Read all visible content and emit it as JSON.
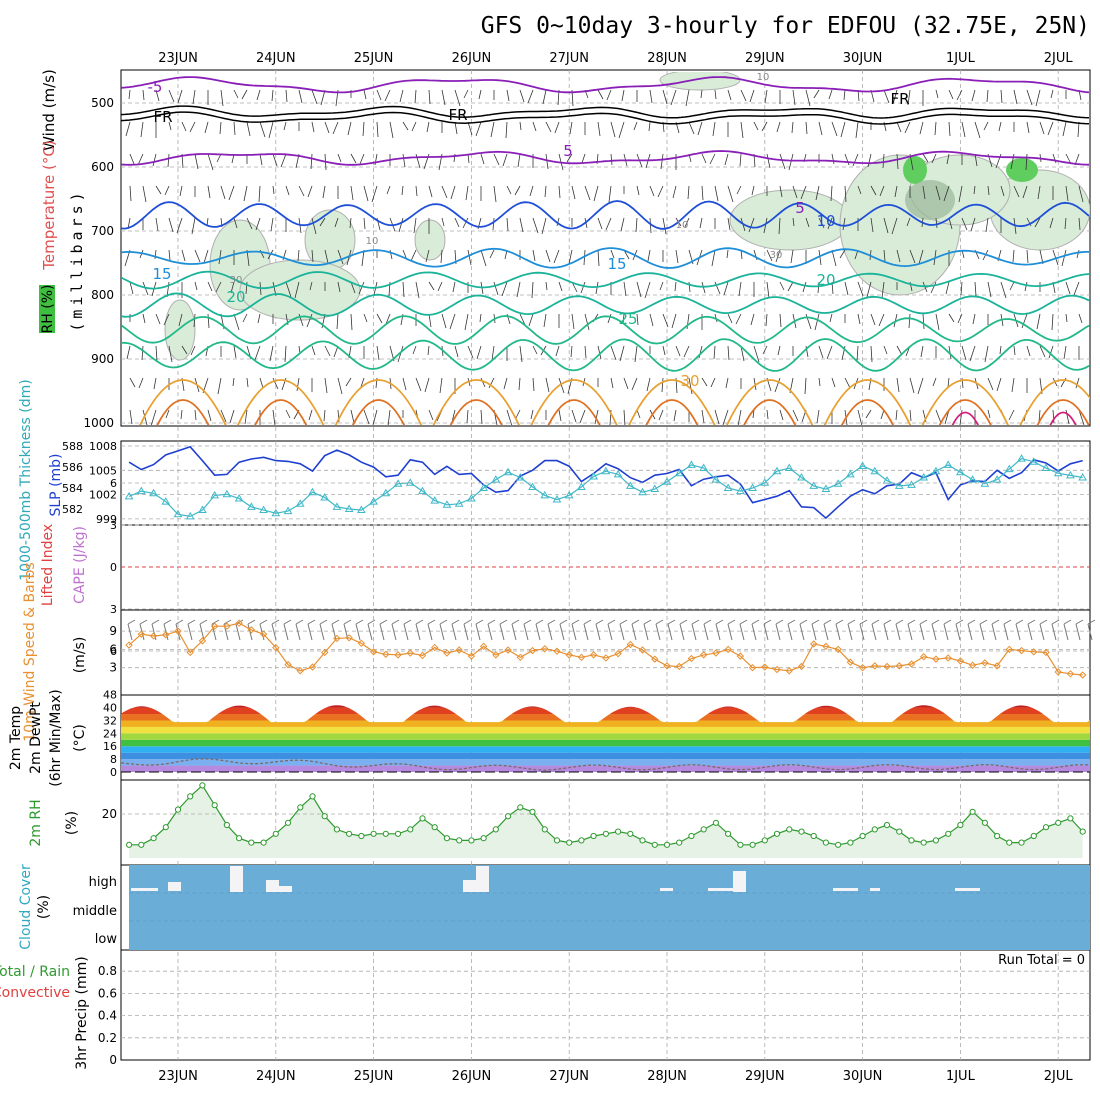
{
  "title": "GFS 0~10day 3-hourly for EDFOU (32.75E, 25N)",
  "dates": [
    "23JUN",
    "24JUN",
    "25JUN",
    "26JUN",
    "27JUN",
    "28JUN",
    "29JUN",
    "30JUN",
    "1JUL",
    "2JUL"
  ],
  "colors": {
    "temp_cold": "#8a1fb8",
    "temp_freezing": "#000000",
    "temp_10": "#1f4fd6",
    "temp_15": "#1e8ed8",
    "temp_20": "#1bb39a",
    "temp_25": "#22b88a",
    "temp_30": "#e8a030",
    "temp_35": "#e07020",
    "temp_40": "#d0207a",
    "rh_fill": "#d8ecd8",
    "slp": "#1f3fd0",
    "thickness": "#3fb8c8",
    "lifted_index": "#e04040",
    "wind10m": "#e89030",
    "rh2m": "#2f9a2f",
    "cloud": "#6aaed8",
    "grid": "#aaaaaa"
  },
  "panels": {
    "upper_air": {
      "ylabel_wind": "Wind (m/s)",
      "ylabel_temp": "Temperature (°C)",
      "ylabel_rh": "RH (%)",
      "ylabel_unit": "(millibars)",
      "pressure_ticks": [
        "500",
        "600",
        "700",
        "800",
        "900",
        "1000"
      ],
      "contour_labels": [
        "-5",
        "FR",
        "FR",
        "5",
        "5",
        "10",
        "15",
        "15",
        "20",
        "20",
        "25",
        "30",
        "10",
        "30",
        "10",
        "FR",
        "30",
        "10"
      ]
    },
    "slp": {
      "ylabel_thick": "1000-500mb Thickness (dm)",
      "ylabel_slp": "SLP (mb)",
      "left_ticks": [
        "588",
        "586",
        "584",
        "582"
      ],
      "right_ticks": [
        "1008",
        "1005",
        "1002",
        "999"
      ]
    },
    "cape": {
      "ylabel_li": "Lifted Index",
      "ylabel_cape": "CAPE (J/kg)",
      "ticks": [
        "6",
        "3",
        "0",
        "3",
        "6"
      ]
    },
    "wind10m": {
      "ylabel": "10m Wind Speed & Barbs",
      "unit": "(m/s)",
      "ticks": [
        "9",
        "6",
        "3"
      ]
    },
    "temp2m": {
      "ylabel1": "2m Temp",
      "ylabel2": "2m DewPt",
      "ylabel3": "(6hr Min/Max)",
      "unit": "(°C)",
      "ticks": [
        "48",
        "40",
        "32",
        "24",
        "16",
        "8",
        "0"
      ]
    },
    "rh2m": {
      "ylabel": "2m RH",
      "unit": "(%)",
      "ticks": [
        "20"
      ]
    },
    "cloud": {
      "ylabel": "Cloud Cover",
      "unit": "(%)",
      "levels": [
        "high",
        "middle",
        "low"
      ]
    },
    "precip": {
      "ylabel_total": "Total / Rain",
      "ylabel_conv": "Convective",
      "ylabel_unit": "3hr Precip (mm)",
      "ticks": [
        "0.8",
        "0.6",
        "0.4",
        "0.2",
        "0"
      ],
      "run_total": "Run Total = 0"
    }
  },
  "chart_data": [
    {
      "type": "line",
      "name": "sea level pressure and 1000-500mb thickness",
      "x_unit": "days from 23JUN 00z",
      "series": [
        {
          "name": "SLP (mb)",
          "x": [
            -0.5,
            -0.375,
            -0.25,
            -0.125,
            0,
            0.125,
            0.25,
            0.375,
            0.5,
            0.625,
            0.75,
            0.875,
            1,
            1.125,
            1.25,
            1.375,
            1.5,
            1.625,
            1.75,
            1.875,
            2,
            2.125,
            2.25,
            2.375,
            2.5,
            2.625,
            2.75,
            2.875,
            3,
            3.125,
            3.25,
            3.375,
            3.5,
            3.625,
            3.75,
            3.875,
            4,
            4.125,
            4.25,
            4.375,
            4.5,
            4.625,
            4.75,
            4.875,
            5,
            5.125,
            5.25,
            5.375,
            5.5,
            5.625,
            5.75,
            5.875,
            6,
            6.125,
            6.25,
            6.375,
            6.5,
            6.625,
            6.75,
            6.875,
            7,
            7.125,
            7.25,
            7.375,
            7.5,
            7.625,
            7.75,
            7.875,
            8,
            8.125,
            8.25,
            8.375,
            8.5,
            8.625,
            8.75,
            8.875,
            9,
            9.125,
            9.25
          ],
          "values": [
            1006.0,
            1005.1,
            1005.7,
            1006.9,
            1007.4,
            1007.9,
            1006.2,
            1004.4,
            1004.5,
            1006.0,
            1006.4,
            1006.6,
            1006.2,
            1006.1,
            1005.8,
            1004.9,
            1006.8,
            1007.5,
            1006.9,
            1006.0,
            1005.4,
            1004.2,
            1004.4,
            1006.3,
            1006.0,
            1004.5,
            1005.5,
            1004.5,
            1004.6,
            1003.2,
            1002.3,
            1002.5,
            1004.3,
            1005.0,
            1006.2,
            1006.2,
            1005.5,
            1003.6,
            1004.6,
            1005.8,
            1005.2,
            1004.1,
            1003.5,
            1004.4,
            1004.6,
            1005.1,
            1003.1,
            1003.9,
            1004.2,
            1004.4,
            1003.3,
            1001.0,
            1001.4,
            1001.8,
            1002.5,
            1000.5,
            1000.4,
            999.1,
            1000.5,
            1001.8,
            1002.6,
            1002.1,
            1003.1,
            1003.3,
            1004.7,
            1004.1,
            1004.7,
            1001.4,
            1003.2,
            1003.7,
            1003.6,
            1005.0,
            1004.0,
            1004.7,
            1006.3,
            1005.9,
            1004.9,
            1005.8,
            1006.2
          ]
        },
        {
          "name": "1000-500mb Thickness (dm)",
          "x": [
            -0.5,
            -0.375,
            -0.25,
            -0.125,
            0,
            0.125,
            0.25,
            0.375,
            0.5,
            0.625,
            0.75,
            0.875,
            1,
            1.125,
            1.25,
            1.375,
            1.5,
            1.625,
            1.75,
            1.875,
            2,
            2.125,
            2.25,
            2.375,
            2.5,
            2.625,
            2.75,
            2.875,
            3,
            3.125,
            3.25,
            3.375,
            3.5,
            3.625,
            3.75,
            3.875,
            4,
            4.125,
            4.25,
            4.375,
            4.5,
            4.625,
            4.75,
            4.875,
            5,
            5.125,
            5.25,
            5.375,
            5.5,
            5.625,
            5.75,
            5.875,
            6,
            6.125,
            6.25,
            6.375,
            6.5,
            6.625,
            6.75,
            6.875,
            7,
            7.125,
            7.25,
            7.375,
            7.5,
            7.625,
            7.75,
            7.875,
            8,
            8.125,
            8.25,
            8.375,
            8.5,
            8.625,
            8.75,
            8.875,
            9,
            9.125,
            9.25
          ],
          "values": [
            583.2,
            583.7,
            583.5,
            582.7,
            581.5,
            581.3,
            581.9,
            583.3,
            583.4,
            583.0,
            582.2,
            581.9,
            581.6,
            581.8,
            582.5,
            583.6,
            583.1,
            582.2,
            582.0,
            581.9,
            582.7,
            583.5,
            584.4,
            584.5,
            583.7,
            582.8,
            582.4,
            582.5,
            583.0,
            584.0,
            584.8,
            585.5,
            585.0,
            584.1,
            583.3,
            582.9,
            583.3,
            584.1,
            585.1,
            585.6,
            585.3,
            584.2,
            583.6,
            583.9,
            584.6,
            585.4,
            586.2,
            585.9,
            584.8,
            584.0,
            583.7,
            584.0,
            584.5,
            585.6,
            585.9,
            585.0,
            584.2,
            583.9,
            584.4,
            585.3,
            586.1,
            585.6,
            584.7,
            584.2,
            584.3,
            585.0,
            585.6,
            586.2,
            585.5,
            584.8,
            584.4,
            584.8,
            585.8,
            586.8,
            586.5,
            585.9,
            585.4,
            585.2,
            585.0
          ]
        }
      ]
    },
    {
      "type": "line",
      "name": "10m wind speed",
      "x_unit": "days from 23JUN 00z",
      "y_unit": "m/s",
      "series": [
        {
          "name": "10m Wind Speed",
          "x": [
            -0.5,
            -0.375,
            -0.25,
            -0.125,
            0,
            0.125,
            0.25,
            0.375,
            0.5,
            0.625,
            0.75,
            0.875,
            1,
            1.125,
            1.25,
            1.375,
            1.5,
            1.625,
            1.75,
            1.875,
            2,
            2.125,
            2.25,
            2.375,
            2.5,
            2.625,
            2.75,
            2.875,
            3,
            3.125,
            3.25,
            3.375,
            3.5,
            3.625,
            3.75,
            3.875,
            4,
            4.125,
            4.25,
            4.375,
            4.5,
            4.625,
            4.75,
            4.875,
            5,
            5.125,
            5.25,
            5.375,
            5.5,
            5.625,
            5.75,
            5.875,
            6,
            6.125,
            6.25,
            6.375,
            6.5,
            6.625,
            6.75,
            6.875,
            7,
            7.125,
            7.25,
            7.375,
            7.5,
            7.625,
            7.75,
            7.875,
            8,
            8.125,
            8.25,
            8.375,
            8.5,
            8.625,
            8.75,
            8.875,
            9,
            9.125,
            9.25
          ],
          "values": [
            6.7,
            8.5,
            8.2,
            8.4,
            9.0,
            5.5,
            7.4,
            9.8,
            9.8,
            10.3,
            9.2,
            8.5,
            6.3,
            3.5,
            2.5,
            3.1,
            5.5,
            7.8,
            7.9,
            7.0,
            5.6,
            5.2,
            5.1,
            5.4,
            5.0,
            6.3,
            5.4,
            5.9,
            4.9,
            6.5,
            5.1,
            5.9,
            4.7,
            5.8,
            6.1,
            5.7,
            5.1,
            4.7,
            5.1,
            4.6,
            5.3,
            6.8,
            5.9,
            4.4,
            3.3,
            3.2,
            4.5,
            5.1,
            5.4,
            6.0,
            4.9,
            3.0,
            3.1,
            2.7,
            2.5,
            3.2,
            6.9,
            6.5,
            6.0,
            3.9,
            3.0,
            3.3,
            3.2,
            3.3,
            3.6,
            4.8,
            4.4,
            4.6,
            4.1,
            3.4,
            3.8,
            3.3,
            6.0,
            5.8,
            5.6,
            5.5,
            2.3,
            2.0,
            1.8
          ]
        }
      ]
    },
    {
      "type": "area",
      "name": "2m relative humidity",
      "x_unit": "days from 23JUN 00z",
      "y_unit": "%",
      "series": [
        {
          "name": "2m RH",
          "x": [
            -0.5,
            -0.375,
            -0.25,
            -0.125,
            0,
            0.125,
            0.25,
            0.375,
            0.5,
            0.625,
            0.75,
            0.875,
            1,
            1.125,
            1.25,
            1.375,
            1.5,
            1.625,
            1.75,
            1.875,
            2,
            2.125,
            2.25,
            2.375,
            2.5,
            2.625,
            2.75,
            2.875,
            3,
            3.125,
            3.25,
            3.375,
            3.5,
            3.625,
            3.75,
            3.875,
            4,
            4.125,
            4.25,
            4.375,
            4.5,
            4.625,
            4.75,
            4.875,
            5,
            5.125,
            5.25,
            5.375,
            5.5,
            5.625,
            5.75,
            5.875,
            6,
            6.125,
            6.25,
            6.375,
            6.5,
            6.625,
            6.75,
            6.875,
            7,
            7.125,
            7.25,
            7.375,
            7.5,
            7.625,
            7.75,
            7.875,
            8,
            8.125,
            8.25,
            8.375,
            8.5,
            8.625,
            8.75,
            8.875,
            9,
            9.125,
            9.25
          ],
          "values": [
            6,
            6,
            9,
            14,
            22,
            28,
            33,
            24,
            15,
            9,
            7,
            7,
            11,
            16,
            23,
            28,
            19,
            13,
            11,
            10,
            11,
            11,
            11,
            13,
            18,
            14,
            9,
            8,
            8,
            9,
            13,
            19,
            23,
            21,
            13,
            8,
            7,
            8,
            10,
            11,
            12,
            11,
            8,
            6,
            6,
            7,
            10,
            13,
            16,
            11,
            6,
            6,
            8,
            11,
            13,
            12,
            10,
            7,
            6,
            7,
            10,
            13,
            15,
            12,
            8,
            7,
            8,
            11,
            15,
            21,
            16,
            10,
            7,
            7,
            10,
            14,
            16,
            18,
            12
          ]
        }
      ]
    },
    {
      "type": "line",
      "name": "3hr precipitation",
      "x_unit": "days from 23JUN 00z",
      "y_unit": "mm",
      "ylim": [
        0,
        1
      ],
      "series": [
        {
          "name": "Total / Rain",
          "x": [
            -0.5,
            9.25
          ],
          "values": [
            0,
            0
          ]
        },
        {
          "name": "Convective",
          "x": [
            -0.5,
            9.25
          ],
          "values": [
            0,
            0
          ]
        }
      ]
    }
  ]
}
